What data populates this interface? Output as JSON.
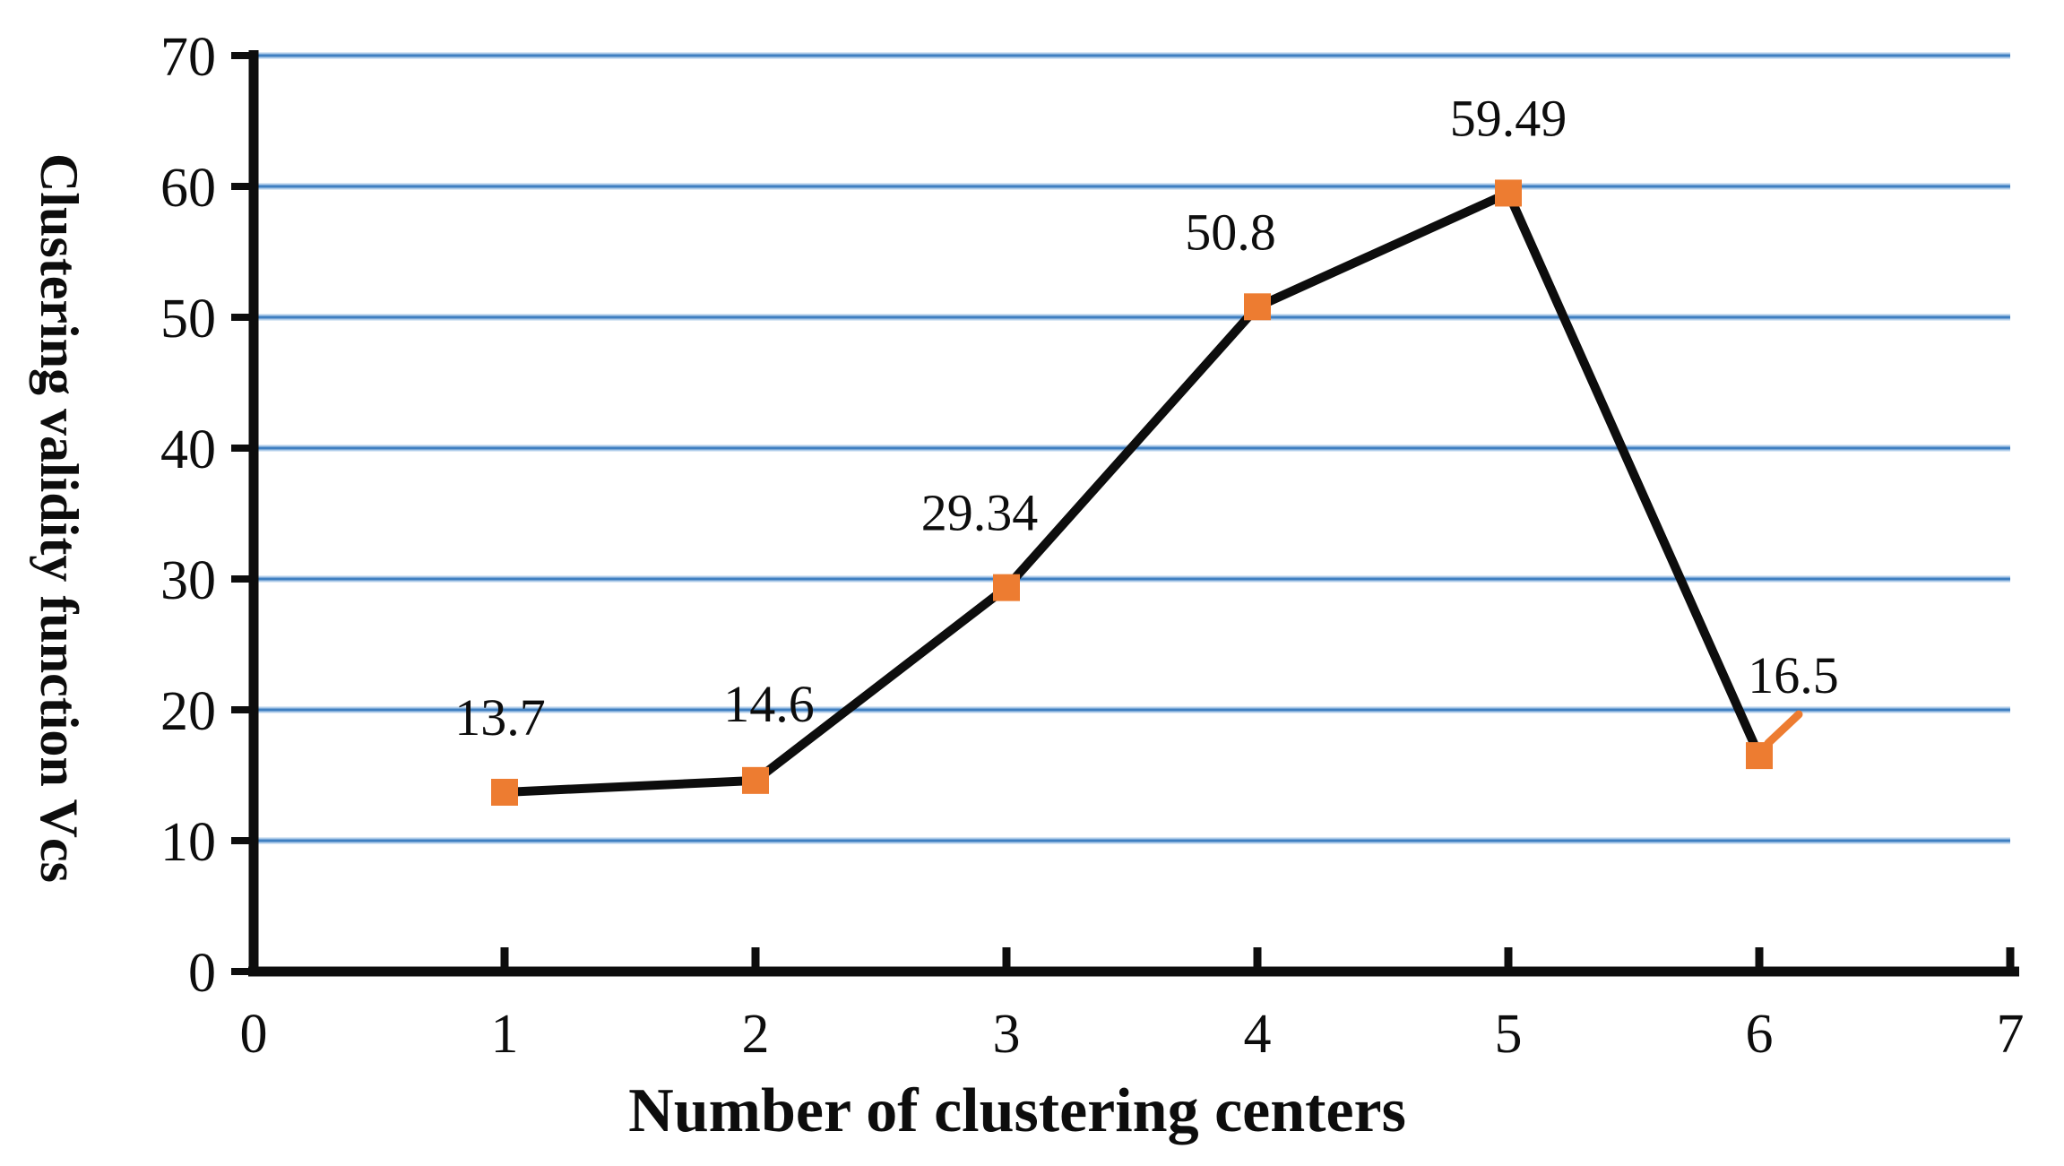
{
  "figure": {
    "background": "#ffffff"
  },
  "chart_data": {
    "type": "line",
    "title": "",
    "xlabel": "Number of clustering centers",
    "ylabel": "Clustering validity function Vcs",
    "x": [
      1,
      2,
      3,
      4,
      5,
      6
    ],
    "series": [
      {
        "name": "Clustering validity function Vcs",
        "values": [
          13.7,
          14.6,
          29.34,
          50.8,
          59.49,
          16.5
        ]
      }
    ],
    "point_labels": [
      "13.7",
      "14.6",
      "29.34",
      "50.8",
      "59.49",
      "16.5"
    ],
    "x_ticks": [
      0,
      1,
      2,
      3,
      4,
      5,
      6,
      7
    ],
    "y_ticks": [
      0,
      10,
      20,
      30,
      40,
      50,
      60,
      70
    ],
    "xlim": [
      0,
      7
    ],
    "ylim": [
      0,
      70
    ],
    "grid": "horizontal-only",
    "legend": "none",
    "marker_shape": "square",
    "colors": {
      "line": "#0d0d0d",
      "marker": "#ed7c31",
      "gridline_core": "#3f7fc1",
      "gridline_halo": "#b0cdea",
      "axis": "#0d0d0d",
      "text": "#0d0d0d"
    }
  }
}
